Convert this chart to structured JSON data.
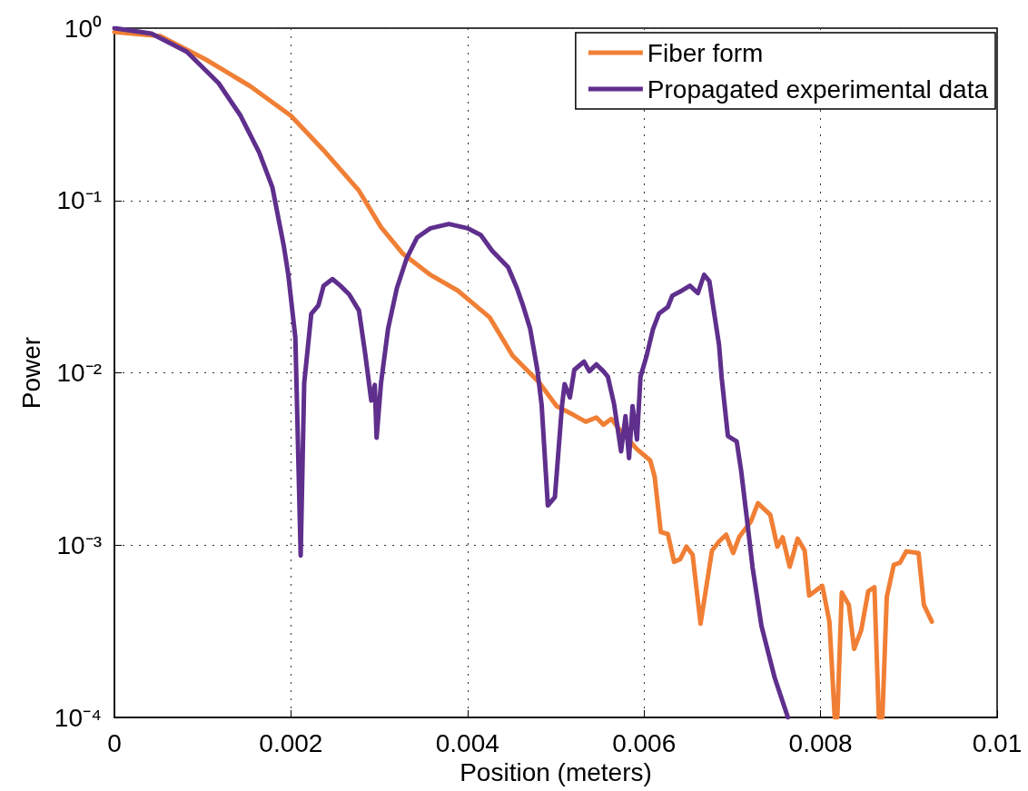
{
  "chart_data": {
    "type": "line",
    "xlabel": "Position (meters)",
    "ylabel": "Power",
    "xlim": [
      0,
      0.01
    ],
    "xticks": [
      0,
      0.002,
      0.004,
      0.006,
      0.008,
      0.01
    ],
    "ylim": [
      0.0001,
      1
    ],
    "yticks": [
      {
        "value": 0.0001,
        "label": "10⁻⁴"
      },
      {
        "value": 0.001,
        "label": "10⁻³"
      },
      {
        "value": 0.01,
        "label": "10⁻²"
      },
      {
        "value": 0.1,
        "label": "10⁻¹"
      },
      {
        "value": 1,
        "label": "10⁰"
      }
    ],
    "log": "y",
    "grid": true,
    "legend": "top right",
    "marker": "none",
    "line_style": "solid",
    "series": [
      {
        "name": "Fiber form",
        "color": "#f07f35",
        "x": [
          0,
          0.00052,
          0.00103,
          0.00154,
          0.002,
          0.00236,
          0.00277,
          0.00302,
          0.00327,
          0.00358,
          0.00389,
          0.00425,
          0.00451,
          0.00481,
          0.00501,
          0.0052,
          0.00534,
          0.00546,
          0.00554,
          0.00563,
          0.00572,
          0.00592,
          0.00607,
          0.00612,
          0.00619,
          0.00627,
          0.00634,
          0.00641,
          0.00648,
          0.00655,
          0.00664,
          0.00677,
          0.00685,
          0.00693,
          0.00701,
          0.00708,
          0.00721,
          0.00729,
          0.00743,
          0.00751,
          0.00757,
          0.00765,
          0.00774,
          0.00782,
          0.00787,
          0.00802,
          0.0081,
          0.00816,
          0.00819,
          0.00824,
          0.00832,
          0.00838,
          0.00846,
          0.00854,
          0.00861,
          0.00866,
          0.0087,
          0.00875,
          0.00883,
          0.0089,
          0.00897,
          0.00911,
          0.00917,
          0.00926
        ],
        "values": [
          0.95,
          0.9,
          0.66,
          0.46,
          0.31,
          0.198,
          0.114,
          0.07,
          0.049,
          0.037,
          0.03,
          0.021,
          0.0126,
          0.0088,
          0.0064,
          0.0057,
          0.0052,
          0.0055,
          0.005,
          0.0054,
          0.0047,
          0.0036,
          0.0031,
          0.0025,
          0.00119,
          0.00116,
          0.0008,
          0.00083,
          0.00098,
          0.00088,
          0.00035,
          0.00093,
          0.00105,
          0.00115,
          0.0009,
          0.00112,
          0.00137,
          0.00175,
          0.0015,
          0.00098,
          0.00111,
          0.00075,
          0.00109,
          0.00093,
          0.00051,
          0.00058,
          0.00036,
          0.0001,
          0.0001,
          0.00053,
          0.00045,
          0.00025,
          0.00032,
          0.00054,
          0.00057,
          0.0001,
          0.0001,
          0.0005,
          0.00077,
          0.00079,
          0.00092,
          0.0009,
          0.00045,
          0.00036
        ]
      },
      {
        "name": "Propagated experimental data",
        "color": "#5f2f8d",
        "x": [
          0,
          0.00042,
          0.00082,
          0.00118,
          0.00143,
          0.00164,
          0.00179,
          0.00192,
          0.00197,
          0.00205,
          0.00211,
          0.00215,
          0.00223,
          0.00231,
          0.00237,
          0.00247,
          0.00256,
          0.00266,
          0.00277,
          0.00284,
          0.00291,
          0.00295,
          0.00297,
          0.00302,
          0.0031,
          0.0032,
          0.00331,
          0.00343,
          0.00358,
          0.00379,
          0.004,
          0.00415,
          0.00428,
          0.00446,
          0.00456,
          0.00463,
          0.00471,
          0.00479,
          0.00484,
          0.00491,
          0.00499,
          0.00507,
          0.0051,
          0.00516,
          0.00521,
          0.00532,
          0.00538,
          0.00546,
          0.00554,
          0.00559,
          0.00566,
          0.00574,
          0.00579,
          0.00583,
          0.00587,
          0.00592,
          0.00596,
          0.00603,
          0.0061,
          0.00617,
          0.00627,
          0.00632,
          0.00643,
          0.00652,
          0.00661,
          0.00668,
          0.00674,
          0.00679,
          0.00685,
          0.00688,
          0.00695,
          0.00705,
          0.0071,
          0.00716,
          0.00723,
          0.00733,
          0.00748,
          0.00763
        ],
        "values": [
          1.0,
          0.93,
          0.73,
          0.48,
          0.31,
          0.19,
          0.119,
          0.054,
          0.037,
          0.016,
          0.00087,
          0.0087,
          0.022,
          0.0246,
          0.032,
          0.035,
          0.032,
          0.0285,
          0.023,
          0.013,
          0.0069,
          0.0085,
          0.0042,
          0.0087,
          0.018,
          0.031,
          0.046,
          0.061,
          0.069,
          0.073,
          0.069,
          0.063,
          0.051,
          0.041,
          0.031,
          0.0245,
          0.018,
          0.0105,
          0.0065,
          0.0017,
          0.0019,
          0.0064,
          0.0086,
          0.0072,
          0.0104,
          0.0116,
          0.0102,
          0.0112,
          0.0102,
          0.0095,
          0.0066,
          0.0035,
          0.0056,
          0.0032,
          0.0064,
          0.0041,
          0.0095,
          0.0126,
          0.0178,
          0.0221,
          0.0241,
          0.028,
          0.03,
          0.032,
          0.029,
          0.037,
          0.034,
          0.023,
          0.0145,
          0.0093,
          0.0043,
          0.004,
          0.0027,
          0.0015,
          0.00074,
          0.00034,
          0.00017,
          0.0001
        ]
      }
    ]
  }
}
